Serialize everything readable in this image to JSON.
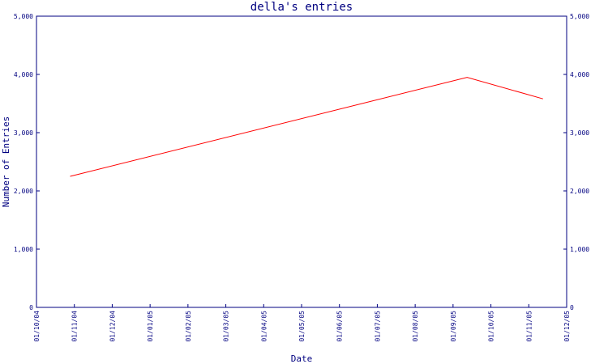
{
  "chart_data": {
    "type": "line",
    "title": "della's entries",
    "xlabel": "Date",
    "ylabel": "Number of Entries",
    "ylim": [
      0,
      5000
    ],
    "xlim": [
      "2004-10-01",
      "2005-12-01"
    ],
    "yticks": [
      "0",
      "1,000",
      "2,000",
      "3,000",
      "4,000",
      "5,000"
    ],
    "xticks": [
      "01/10/04",
      "01/11/04",
      "01/12/04",
      "01/01/05",
      "01/02/05",
      "01/03/05",
      "01/04/05",
      "01/05/05",
      "01/06/05",
      "01/07/05",
      "01/08/05",
      "01/09/05",
      "01/10/05",
      "01/11/05",
      "01/12/05"
    ],
    "series": [
      {
        "x": [
          "2004-10-28",
          "2005-09-12",
          "2005-11-12"
        ],
        "values": [
          2250,
          3950,
          3580
        ]
      }
    ],
    "grid": false,
    "colors": {
      "axes": "#000080",
      "series": "#ff0000",
      "background": "#ffffff"
    }
  }
}
